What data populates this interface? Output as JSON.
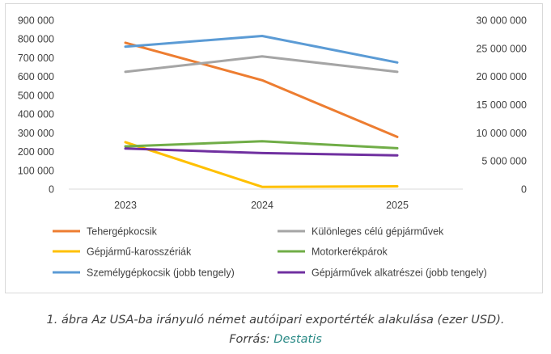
{
  "chart_data": {
    "type": "line",
    "categories": [
      "2023",
      "2024",
      "2025"
    ],
    "left_axis": {
      "min": 0,
      "max": 900000,
      "step": 100000,
      "tick_labels": [
        "0",
        "100 000",
        "200 000",
        "300 000",
        "400 000",
        "500 000",
        "600 000",
        "700 000",
        "800 000",
        "900 000"
      ]
    },
    "right_axis": {
      "min": 0,
      "max": 30000000,
      "step": 5000000,
      "tick_labels": [
        "0",
        "5 000 000",
        "10 000 000",
        "15 000 000",
        "20 000 000",
        "25 000 000",
        "30 000 000"
      ]
    },
    "series": [
      {
        "name": "Tehergépkocsik",
        "axis": "left",
        "color": "#ed7d31",
        "values": [
          780000,
          580000,
          278000
        ]
      },
      {
        "name": "Különleges célú gépjárművek",
        "axis": "left",
        "color": "#a5a5a5",
        "values": [
          625000,
          707000,
          625000
        ]
      },
      {
        "name": "Gépjármű-karosszériák",
        "axis": "left",
        "color": "#ffc000",
        "values": [
          250000,
          12000,
          15000
        ]
      },
      {
        "name": "Motorkerékpárok",
        "axis": "left",
        "color": "#70ad47",
        "values": [
          228000,
          255000,
          218000
        ]
      },
      {
        "name": "Személygépkocsik (jobb tengely)",
        "axis": "right",
        "color": "#5b9bd5",
        "values": [
          25300000,
          27200000,
          22500000
        ]
      },
      {
        "name": "Gépjárművek alkatrészei (jobb tengely)",
        "axis": "right",
        "color": "#7030a0",
        "values": [
          7200000,
          6400000,
          6000000
        ]
      }
    ],
    "grid": false,
    "legend_position": "bottom"
  },
  "caption": {
    "line1": "1. ábra Az USA-ba irányuló német autóipari exportérték alakulása (ezer USD).",
    "source_prefix": "Forrás: ",
    "source_name": "Destatis"
  }
}
